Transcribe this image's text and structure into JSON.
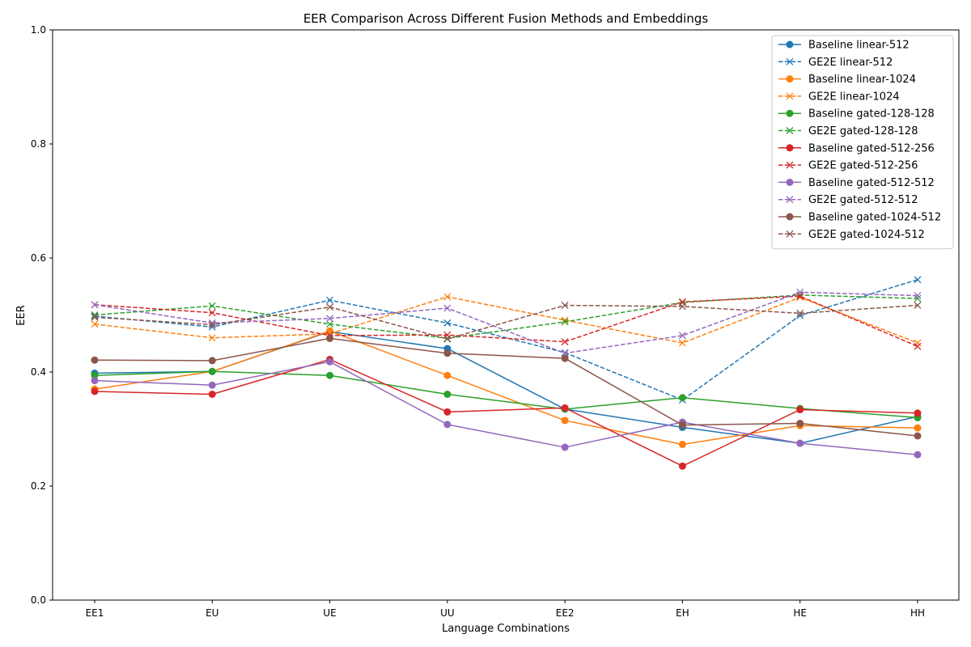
{
  "chart_data": {
    "type": "line",
    "title": "EER Comparison Across Different Fusion Methods and Embeddings",
    "xlabel": "Language Combinations",
    "ylabel": "EER",
    "categories": [
      "EE1",
      "EU",
      "UE",
      "UU",
      "EE2",
      "EH",
      "HE",
      "HH"
    ],
    "ylim": [
      0,
      1
    ],
    "yticks": [
      "0.0",
      "0.2",
      "0.4",
      "0.6",
      "0.8",
      "1.0"
    ],
    "grid": false,
    "legend_position": "top-right",
    "series": [
      {
        "name": "Baseline linear-512",
        "color": "#1f77b4",
        "style": "solid",
        "marker": "circle",
        "values": [
          0.398,
          0.401,
          0.471,
          0.441,
          0.335,
          0.303,
          0.275,
          0.322
        ]
      },
      {
        "name": "GE2E linear-512",
        "color": "#1f77b4",
        "style": "dashed",
        "marker": "x",
        "values": [
          0.498,
          0.479,
          0.526,
          0.486,
          0.434,
          0.351,
          0.499,
          0.562
        ]
      },
      {
        "name": "Baseline linear-1024",
        "color": "#ff7f0e",
        "style": "solid",
        "marker": "circle",
        "values": [
          0.37,
          0.401,
          0.472,
          0.394,
          0.315,
          0.273,
          0.306,
          0.302
        ]
      },
      {
        "name": "GE2E linear-1024",
        "color": "#ff7f0e",
        "style": "dashed",
        "marker": "x",
        "values": [
          0.484,
          0.46,
          0.467,
          0.532,
          0.491,
          0.451,
          0.531,
          0.451
        ]
      },
      {
        "name": "Baseline gated-128-128",
        "color": "#2ca02c",
        "style": "solid",
        "marker": "circle",
        "values": [
          0.394,
          0.401,
          0.394,
          0.361,
          0.335,
          0.355,
          0.336,
          0.32
        ]
      },
      {
        "name": "GE2E gated-128-128",
        "color": "#2ca02c",
        "style": "dashed",
        "marker": "x",
        "values": [
          0.5,
          0.516,
          0.484,
          0.459,
          0.488,
          0.522,
          0.535,
          0.529
        ]
      },
      {
        "name": "Baseline gated-512-256",
        "color": "#d62728",
        "style": "solid",
        "marker": "circle",
        "values": [
          0.366,
          0.361,
          0.422,
          0.33,
          0.337,
          0.235,
          0.334,
          0.328
        ]
      },
      {
        "name": "GE2E gated-512-256",
        "color": "#d62728",
        "style": "dashed",
        "marker": "x",
        "values": [
          0.518,
          0.504,
          0.464,
          0.465,
          0.453,
          0.523,
          0.533,
          0.445
        ]
      },
      {
        "name": "Baseline gated-512-512",
        "color": "#9467bd",
        "style": "solid",
        "marker": "circle",
        "values": [
          0.385,
          0.377,
          0.418,
          0.308,
          0.268,
          0.312,
          0.275,
          0.255
        ]
      },
      {
        "name": "GE2E gated-512-512",
        "color": "#9467bd",
        "style": "dashed",
        "marker": "x",
        "values": [
          0.518,
          0.486,
          0.494,
          0.512,
          0.433,
          0.464,
          0.54,
          0.534
        ]
      },
      {
        "name": "Baseline gated-1024-512",
        "color": "#8c564b",
        "style": "solid",
        "marker": "circle",
        "values": [
          0.421,
          0.42,
          0.459,
          0.433,
          0.424,
          0.307,
          0.31,
          0.288
        ]
      },
      {
        "name": "GE2E gated-1024-512",
        "color": "#8c564b",
        "style": "dashed",
        "marker": "x",
        "values": [
          0.496,
          0.483,
          0.514,
          0.458,
          0.517,
          0.515,
          0.503,
          0.517
        ]
      }
    ]
  }
}
